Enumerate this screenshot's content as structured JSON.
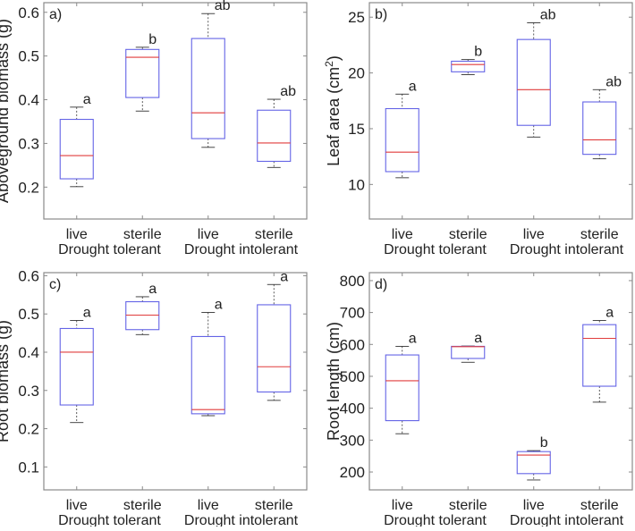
{
  "chart_data": [
    {
      "type": "box",
      "panel_label": "a)",
      "ylabel": "Aboveground biomass (g)",
      "ylabel_sup": "",
      "ylabel_end": "",
      "ylim": [
        0.127,
        0.622
      ],
      "yticks": [
        0.2,
        0.3,
        0.4,
        0.5,
        0.6
      ],
      "ytick_decimals": 1,
      "categories": [
        "live",
        "sterile",
        "live",
        "sterile"
      ],
      "groups": [
        "Drought tolerant",
        "Drought intolerant"
      ],
      "boxes": [
        {
          "whisker_low": 0.201,
          "q1": 0.219,
          "median": 0.272,
          "q3": 0.355,
          "whisker_high": 0.383,
          "letter": "a"
        },
        {
          "whisker_low": 0.374,
          "q1": 0.405,
          "median": 0.497,
          "q3": 0.515,
          "whisker_high": 0.52,
          "letter": "b"
        },
        {
          "whisker_low": 0.291,
          "q1": 0.311,
          "median": 0.37,
          "q3": 0.54,
          "whisker_high": 0.597,
          "letter": "ab"
        },
        {
          "whisker_low": 0.245,
          "q1": 0.259,
          "median": 0.301,
          "q3": 0.376,
          "whisker_high": 0.401,
          "letter": "ab"
        }
      ]
    },
    {
      "type": "box",
      "panel_label": "b)",
      "ylabel": "Leaf area (cm",
      "ylabel_sup": "2",
      "ylabel_end": ")",
      "ylim": [
        6.9,
        26.3
      ],
      "yticks": [
        10,
        15,
        20,
        25
      ],
      "ytick_decimals": 0,
      "categories": [
        "live",
        "sterile",
        "live",
        "sterile"
      ],
      "groups": [
        "Drought tolerant",
        "Drought intolerant"
      ],
      "boxes": [
        {
          "whisker_low": 10.6,
          "q1": 11.15,
          "median": 12.9,
          "q3": 16.8,
          "whisker_high": 18.1,
          "letter": "a"
        },
        {
          "whisker_low": 19.85,
          "q1": 20.1,
          "median": 20.75,
          "q3": 21.05,
          "whisker_high": 21.2,
          "letter": "b"
        },
        {
          "whisker_low": 14.25,
          "q1": 15.3,
          "median": 18.5,
          "q3": 23.0,
          "whisker_high": 24.5,
          "letter": "ab"
        },
        {
          "whisker_low": 12.3,
          "q1": 12.7,
          "median": 14.0,
          "q3": 17.4,
          "whisker_high": 18.5,
          "letter": "ab"
        }
      ]
    },
    {
      "type": "box",
      "panel_label": "c)",
      "ylabel": "Root biomass (g)",
      "ylabel_sup": "",
      "ylabel_end": "",
      "ylim": [
        0.04,
        0.608
      ],
      "yticks": [
        0.1,
        0.2,
        0.3,
        0.4,
        0.5,
        0.6
      ],
      "ytick_decimals": 1,
      "categories": [
        "live",
        "sterile",
        "live",
        "sterile"
      ],
      "groups": [
        "Drought tolerant",
        "Drought intolerant"
      ],
      "boxes": [
        {
          "whisker_low": 0.216,
          "q1": 0.262,
          "median": 0.4,
          "q3": 0.462,
          "whisker_high": 0.483,
          "letter": "a"
        },
        {
          "whisker_low": 0.446,
          "q1": 0.459,
          "median": 0.497,
          "q3": 0.532,
          "whisker_high": 0.545,
          "letter": "a"
        },
        {
          "whisker_low": 0.234,
          "q1": 0.239,
          "median": 0.25,
          "q3": 0.441,
          "whisker_high": 0.504,
          "letter": "a"
        },
        {
          "whisker_low": 0.274,
          "q1": 0.296,
          "median": 0.362,
          "q3": 0.524,
          "whisker_high": 0.577,
          "letter": "a"
        }
      ]
    },
    {
      "type": "box",
      "panel_label": "d)",
      "ylabel": "Root length (cm)",
      "ylabel_sup": "",
      "ylabel_end": "",
      "ylim": [
        144,
        825
      ],
      "yticks": [
        200,
        300,
        400,
        500,
        600,
        700,
        800
      ],
      "ytick_decimals": 0,
      "categories": [
        "live",
        "sterile",
        "live",
        "sterile"
      ],
      "groups": [
        "Drought tolerant",
        "Drought intolerant"
      ],
      "boxes": [
        {
          "whisker_low": 320,
          "q1": 361,
          "median": 486,
          "q3": 567,
          "whisker_high": 594,
          "letter": "a"
        },
        {
          "whisker_low": 544,
          "q1": 556,
          "median": 593,
          "q3": 594,
          "whisker_high": 595,
          "letter": "a"
        },
        {
          "whisker_low": 175,
          "q1": 195,
          "median": 253,
          "q3": 264,
          "whisker_high": 267,
          "letter": "b"
        },
        {
          "whisker_low": 419,
          "q1": 469,
          "median": 619,
          "q3": 662,
          "whisker_high": 675,
          "letter": "a"
        }
      ]
    }
  ],
  "colors": {
    "box": "#6464e6",
    "median": "#e03c3c",
    "whisker": "#333333",
    "axis": "#8a8a8a"
  }
}
